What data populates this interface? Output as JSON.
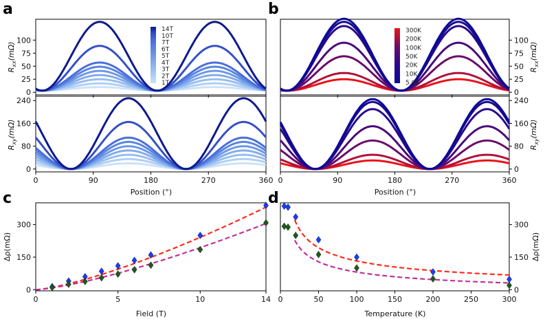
{
  "chart_data": [
    {
      "panel": "a",
      "type": "line",
      "title": "",
      "xlabel": "",
      "ylabel": "R_xx(mΩ)",
      "xlim": [
        0,
        360
      ],
      "ylim": [
        -5,
        140
      ],
      "xticks": [
        0,
        90,
        180,
        270,
        360
      ],
      "yticks": [
        0,
        25,
        50,
        75,
        100
      ],
      "legend_title": "",
      "legend": [
        "14T",
        "10T",
        "7T",
        "6T",
        "5T",
        "4T",
        "3T",
        "2T",
        "1T"
      ],
      "series": [
        {
          "name": "14T",
          "amplitude": 132,
          "color": "#0d1a8c"
        },
        {
          "name": "10T",
          "amplitude": 86,
          "color": "#3450c8"
        },
        {
          "name": "7T",
          "amplitude": 54,
          "color": "#4a6fd8"
        },
        {
          "name": "6T",
          "amplitude": 46,
          "color": "#5a85e0"
        },
        {
          "name": "5T",
          "amplitude": 38,
          "color": "#6d98e6"
        },
        {
          "name": "4T",
          "amplitude": 30,
          "color": "#82abeb"
        },
        {
          "name": "3T",
          "amplitude": 22,
          "color": "#98bdf0"
        },
        {
          "name": "2T",
          "amplitude": 14,
          "color": "#b0cff4"
        },
        {
          "name": "1T",
          "amplitude": 7,
          "color": "#cde2f8"
        }
      ],
      "peaks_deg": [
        100,
        280
      ]
    },
    {
      "panel": "a-lower",
      "type": "line",
      "xlabel": "Position (°)",
      "ylabel": "R_xy(mΩ)",
      "xlim": [
        0,
        360
      ],
      "ylim": [
        -10,
        255
      ],
      "xticks": [
        0,
        90,
        180,
        270,
        360
      ],
      "yticks": [
        0,
        80,
        160,
        240
      ],
      "amplitudes": [
        248,
        165,
        110,
        95,
        80,
        65,
        50,
        35,
        20
      ],
      "peaks_deg": [
        150,
        330
      ],
      "minima_deg": [
        55,
        235
      ]
    },
    {
      "panel": "b",
      "type": "line",
      "xlabel": "",
      "ylabel": "R_xx(mΩ)",
      "xlim": [
        0,
        360
      ],
      "ylim": [
        -5,
        140
      ],
      "xticks": [
        0,
        90,
        180,
        270,
        360
      ],
      "yticks": [
        0,
        25,
        50,
        75,
        100
      ],
      "legend": [
        "300K",
        "200K",
        "100K",
        "50K",
        "20K",
        "10K",
        "5.0K"
      ],
      "series": [
        {
          "name": "300K",
          "amplitude": 22,
          "color": "#e8141a"
        },
        {
          "name": "200K",
          "amplitude": 34,
          "color": "#b0123a"
        },
        {
          "name": "100K",
          "amplitude": 66,
          "color": "#6a0c6a"
        },
        {
          "name": "50K",
          "amplitude": 92,
          "color": "#4a0a7a"
        },
        {
          "name": "20K",
          "amplitude": 124,
          "color": "#2a0a8a"
        },
        {
          "name": "10K",
          "amplitude": 132,
          "color": "#1a0a90"
        },
        {
          "name": "5.0K",
          "amplitude": 138,
          "color": "#0d0a96"
        }
      ],
      "peaks_deg": [
        100,
        280
      ]
    },
    {
      "panel": "b-lower",
      "type": "line",
      "xlabel": "Position (°)",
      "ylabel": "R_xy(mΩ)",
      "xlim": [
        0,
        360
      ],
      "ylim": [
        -10,
        255
      ],
      "xticks": [
        0,
        90,
        180,
        270,
        360
      ],
      "yticks": [
        0,
        80,
        160,
        240
      ],
      "amplitudes": [
        30,
        50,
        100,
        150,
        210,
        235,
        245
      ],
      "peaks_deg": [
        145,
        330
      ],
      "minima_deg": [
        55,
        235
      ]
    },
    {
      "panel": "c",
      "type": "scatter",
      "xlabel": "Field (T)",
      "ylabel": "Δρ(mΩ)",
      "xlim": [
        0,
        14
      ],
      "ylim": [
        -5,
        400
      ],
      "xticks": [
        0,
        5,
        10,
        14
      ],
      "yticks": [
        0,
        150,
        300
      ],
      "series": [
        {
          "name": "blue diamonds",
          "x": [
            1,
            2,
            3,
            4,
            5,
            6,
            7,
            10,
            14
          ],
          "y": [
            14,
            40,
            60,
            85,
            110,
            135,
            160,
            250,
            388
          ],
          "color": "#1a3cff"
        },
        {
          "name": "green diamonds",
          "x": [
            1,
            2,
            3,
            4,
            5,
            6,
            7,
            10,
            14
          ],
          "y": [
            10,
            25,
            38,
            55,
            72,
            92,
            113,
            185,
            308
          ],
          "color": "#1e5a1e"
        }
      ],
      "fits": [
        {
          "name": "red dashed fit",
          "color": "#ff2a1a",
          "x": [
            0,
            14
          ],
          "y": [
            0,
            380
          ]
        },
        {
          "name": "magenta dashed fit",
          "color": "#c0309a",
          "x": [
            0,
            14
          ],
          "y": [
            0,
            305
          ]
        }
      ]
    },
    {
      "panel": "d",
      "type": "scatter",
      "xlabel": "Temperature (K)",
      "ylabel": "Δρ(mΩ)",
      "xlim": [
        0,
        300
      ],
      "ylim": [
        -5,
        400
      ],
      "xticks": [
        0,
        50,
        100,
        150,
        200,
        250,
        300
      ],
      "yticks": [
        0,
        150,
        300
      ],
      "series": [
        {
          "name": "blue diamonds",
          "x": [
            5,
            10,
            20,
            50,
            100,
            200,
            300
          ],
          "y": [
            385,
            380,
            335,
            230,
            150,
            82,
            48
          ],
          "color": "#1a3cff"
        },
        {
          "name": "green diamonds",
          "x": [
            5,
            10,
            20,
            50,
            100,
            200,
            300
          ],
          "y": [
            292,
            288,
            250,
            162,
            100,
            50,
            20
          ],
          "color": "#1e5a1e"
        }
      ],
      "fits": [
        {
          "name": "red dashed fit",
          "color": "#ff2a1a"
        },
        {
          "name": "magenta dashed fit",
          "color": "#c0309a"
        }
      ]
    }
  ],
  "labels": {
    "panel_a": "a",
    "panel_b": "b",
    "panel_c": "c",
    "panel_d": "d",
    "rxx": "R",
    "rxx_sub": "xx",
    "rxx_unit": "(mΩ)",
    "rxy_sub": "xy",
    "position_label": "Position (°)",
    "field_label": "Field (T)",
    "temperature_label": "Temperature (K)",
    "drho_label": "Δρ(mΩ)"
  }
}
